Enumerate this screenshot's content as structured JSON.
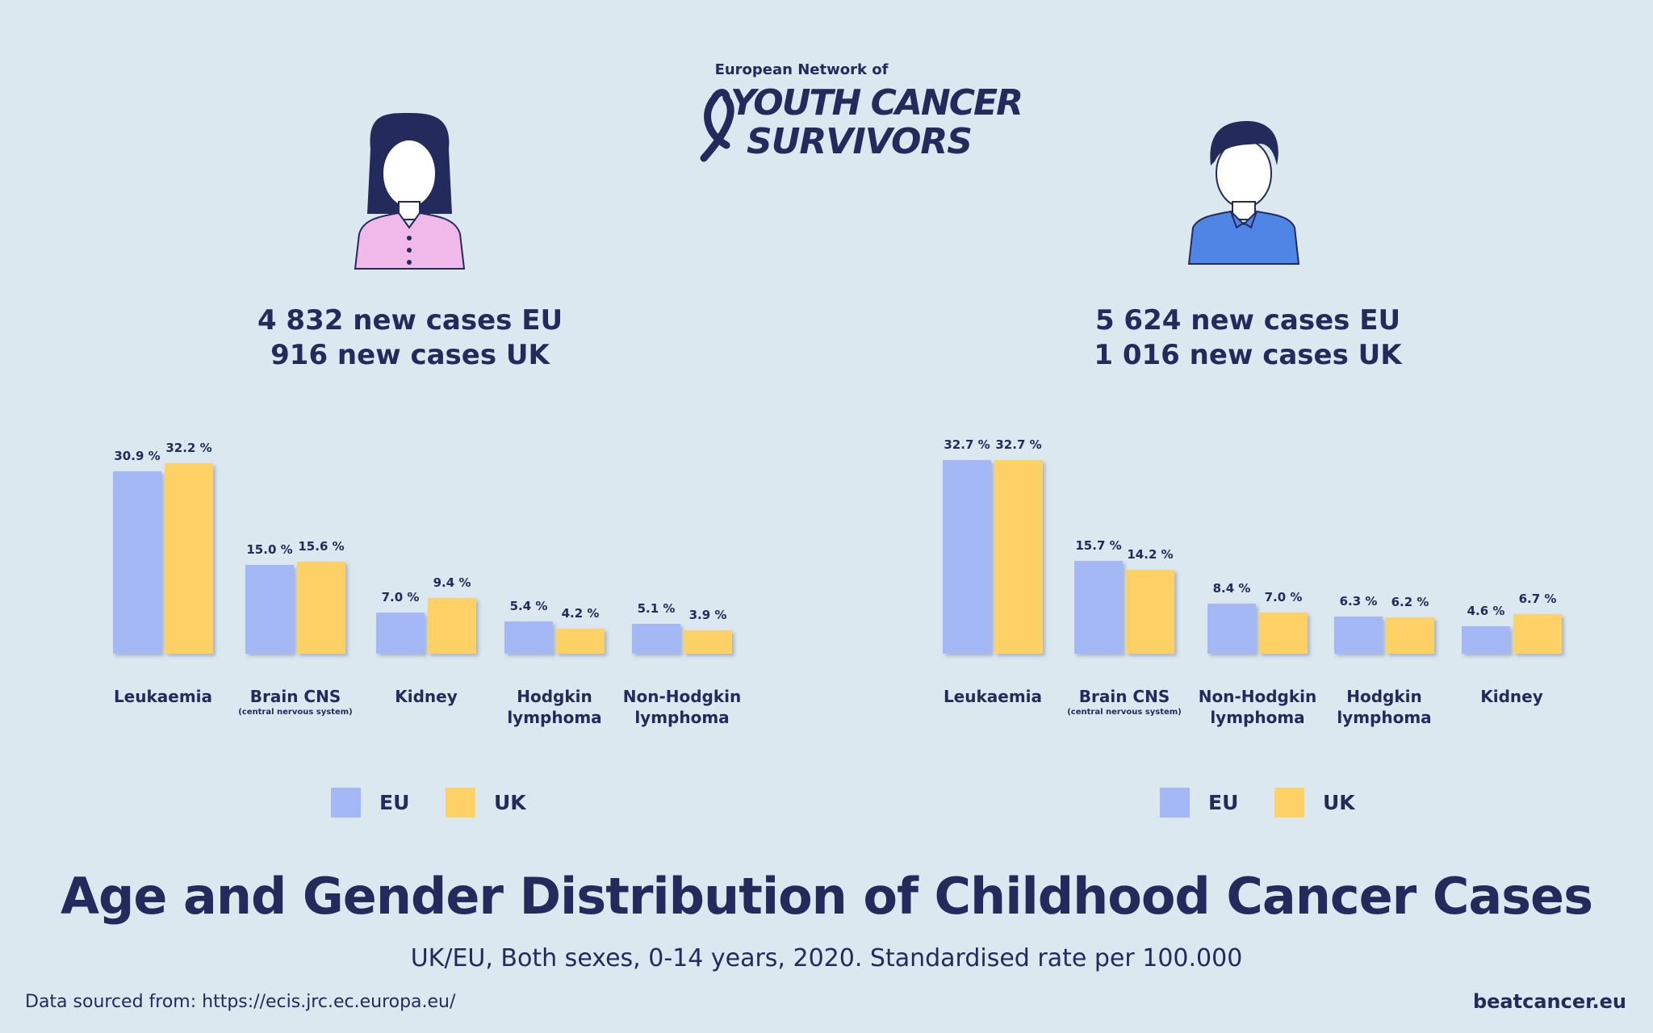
{
  "logo": {
    "network": "European Network of",
    "line1": "YOUTH CANCER",
    "line2": "SURVIVORS"
  },
  "title": "Age and Gender Distribution of Childhood Cancer Cases",
  "subtitle": "UK/EU, Both sexes, 0-14 years, 2020. Standardised rate per 100.000",
  "source": "Data sourced from: https://ecis.jrc.ec.europa.eu/",
  "site": "beatcancer.eu",
  "chart_data": [
    {
      "type": "bar",
      "headline": [
        "4 832 new cases EU",
        "916 new cases UK"
      ],
      "categories": [
        "Leukaemia",
        "Brain CNS",
        "Kidney",
        "Hodgkin lymphoma",
        "Non-Hodgkin lymphoma"
      ],
      "annotations": [
        {
          "category": "Brain CNS",
          "text": "(central nervous system)"
        }
      ],
      "series": [
        {
          "name": "EU",
          "color": "#a3b8f5",
          "values": [
            30.9,
            15.0,
            7.0,
            5.4,
            5.1
          ],
          "value_labels": [
            "30.9 %",
            "15.0 %",
            "7.0 %",
            "5.4 %",
            "5.1 %"
          ]
        },
        {
          "name": "UK",
          "color": "#fdd166",
          "values": [
            32.2,
            15.6,
            9.4,
            4.2,
            3.9
          ],
          "value_labels": [
            "32.2 %",
            "15.6 %",
            "9.4 %",
            "4.2 %",
            "3.9 %"
          ]
        }
      ]
    },
    {
      "type": "bar",
      "headline": [
        "5 624 new cases EU",
        "1 016 new cases UK"
      ],
      "categories": [
        "Leukaemia",
        "Brain CNS",
        "Non-Hodgkin lymphoma",
        "Hodgkin lymphoma",
        "Kidney"
      ],
      "annotations": [
        {
          "category": "Brain CNS",
          "text": "(central nervous system)"
        }
      ],
      "series": [
        {
          "name": "EU",
          "color": "#a3b8f5",
          "values": [
            32.7,
            15.7,
            8.4,
            6.3,
            4.6
          ],
          "value_labels": [
            "32.7 %",
            "15.7 %",
            "8.4 %",
            "6.3 %",
            "4.6 %"
          ]
        },
        {
          "name": "UK",
          "color": "#fdd166",
          "values": [
            32.7,
            14.2,
            7.0,
            6.2,
            6.7
          ],
          "value_labels": [
            "32.7 %",
            "14.2 %",
            "7.0 %",
            "6.2 %",
            "6.7 %"
          ]
        }
      ]
    }
  ]
}
